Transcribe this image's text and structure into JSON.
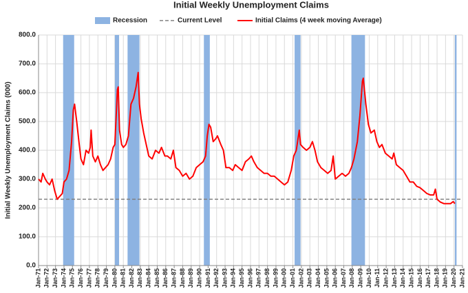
{
  "chart_data": {
    "type": "line",
    "title": "Initial Weekly Unemployment Claims",
    "y_label": "Initial Weekly Unemployment Claims (000)",
    "xlim": [
      1971,
      2021
    ],
    "xticks": [
      {
        "value": 1971,
        "label": "Jan-71"
      },
      {
        "value": 1972,
        "label": "Jan-72"
      },
      {
        "value": 1973,
        "label": "Jan-73"
      },
      {
        "value": 1974,
        "label": "Jan-74"
      },
      {
        "value": 1975,
        "label": "Jan-75"
      },
      {
        "value": 1976,
        "label": "Jan-76"
      },
      {
        "value": 1977,
        "label": "Jan-77"
      },
      {
        "value": 1978,
        "label": "Jan-78"
      },
      {
        "value": 1979,
        "label": "Jan-79"
      },
      {
        "value": 1980,
        "label": "Jan-80"
      },
      {
        "value": 1981,
        "label": "Jan-81"
      },
      {
        "value": 1982,
        "label": "Jan-82"
      },
      {
        "value": 1983,
        "label": "Jan-83"
      },
      {
        "value": 1984,
        "label": "Jan-84"
      },
      {
        "value": 1985,
        "label": "Jan-85"
      },
      {
        "value": 1986,
        "label": "Jan-86"
      },
      {
        "value": 1987,
        "label": "Jan-87"
      },
      {
        "value": 1988,
        "label": "Jan-88"
      },
      {
        "value": 1989,
        "label": "Jan-89"
      },
      {
        "value": 1990,
        "label": "Jan-90"
      },
      {
        "value": 1991,
        "label": "Jan-91"
      },
      {
        "value": 1992,
        "label": "Jan-92"
      },
      {
        "value": 1993,
        "label": "Jan-93"
      },
      {
        "value": 1994,
        "label": "Jan-94"
      },
      {
        "value": 1995,
        "label": "Jan-95"
      },
      {
        "value": 1996,
        "label": "Jan-96"
      },
      {
        "value": 1997,
        "label": "Jan-97"
      },
      {
        "value": 1998,
        "label": "Jan-98"
      },
      {
        "value": 1999,
        "label": "Jan-99"
      },
      {
        "value": 2000,
        "label": "Jan-00"
      },
      {
        "value": 2001,
        "label": "Jan-01"
      },
      {
        "value": 2002,
        "label": "Jan-02"
      },
      {
        "value": 2003,
        "label": "Jan-03"
      },
      {
        "value": 2004,
        "label": "Jan-04"
      },
      {
        "value": 2005,
        "label": "Jan-05"
      },
      {
        "value": 2006,
        "label": "Jan-06"
      },
      {
        "value": 2007,
        "label": "Jan-07"
      },
      {
        "value": 2008,
        "label": "Jan-08"
      },
      {
        "value": 2009,
        "label": "Jan-09"
      },
      {
        "value": 2010,
        "label": "Jan-10"
      },
      {
        "value": 2011,
        "label": "Jan-11"
      },
      {
        "value": 2012,
        "label": "Jan-12"
      },
      {
        "value": 2013,
        "label": "Jan-13"
      },
      {
        "value": 2014,
        "label": "Jan-14"
      },
      {
        "value": 2015,
        "label": "Jan-15"
      },
      {
        "value": 2016,
        "label": "Jan-16"
      },
      {
        "value": 2017,
        "label": "Jan-17"
      },
      {
        "value": 2018,
        "label": "Jan-18"
      },
      {
        "value": 2019,
        "label": "Jan-19"
      },
      {
        "value": 2020,
        "label": "Jan-20"
      },
      {
        "value": 2021,
        "label": "Jan-21"
      }
    ],
    "ylim": [
      0,
      800
    ],
    "yticks": [
      {
        "value": 0,
        "label": "0.0"
      },
      {
        "value": 100,
        "label": "100.0"
      },
      {
        "value": 200,
        "label": "200.0"
      },
      {
        "value": 300,
        "label": "300.0"
      },
      {
        "value": 400,
        "label": "400.0"
      },
      {
        "value": 500,
        "label": "500.0"
      },
      {
        "value": 600,
        "label": "600.0"
      },
      {
        "value": 700,
        "label": "700.0"
      },
      {
        "value": 800,
        "label": "800.0"
      }
    ],
    "grid": true,
    "recessions": {
      "name": "Recession",
      "color": "#8db3e2",
      "starts": [
        1973.9,
        1980.0,
        1981.5,
        1990.5,
        2001.2,
        2007.9,
        2020.1
      ],
      "ends": [
        1975.2,
        1980.5,
        1982.9,
        1991.2,
        2001.9,
        2009.5,
        2020.3
      ]
    },
    "current_level": {
      "name": "Current Level",
      "color": "#808080",
      "value": 230
    },
    "series": [
      {
        "name": "Initial Claims (4 week moving Average)",
        "color": "#ff0000",
        "x": [
          1971.0,
          1971.3,
          1971.5,
          1971.8,
          1972.0,
          1972.3,
          1972.6,
          1972.9,
          1973.2,
          1973.5,
          1973.8,
          1974.0,
          1974.3,
          1974.6,
          1974.9,
          1975.1,
          1975.25,
          1975.5,
          1975.8,
          1976.0,
          1976.3,
          1976.6,
          1976.9,
          1977.1,
          1977.2,
          1977.4,
          1977.7,
          1978.0,
          1978.3,
          1978.6,
          1978.9,
          1979.2,
          1979.5,
          1979.8,
          1980.0,
          1980.3,
          1980.4,
          1980.55,
          1980.8,
          1981.0,
          1981.3,
          1981.6,
          1981.9,
          1982.2,
          1982.5,
          1982.75,
          1982.9,
          1983.1,
          1983.4,
          1983.7,
          1984.0,
          1984.4,
          1984.8,
          1985.2,
          1985.5,
          1985.9,
          1986.2,
          1986.6,
          1986.9,
          1987.2,
          1987.6,
          1988.0,
          1988.4,
          1988.8,
          1989.2,
          1989.6,
          1990.0,
          1990.4,
          1990.7,
          1990.9,
          1991.1,
          1991.3,
          1991.6,
          1991.9,
          1992.1,
          1992.5,
          1992.8,
          1993.1,
          1993.5,
          1993.9,
          1994.2,
          1994.6,
          1995.0,
          1995.4,
          1995.8,
          1996.1,
          1996.4,
          1996.8,
          1997.2,
          1997.6,
          1998.0,
          1998.4,
          1998.8,
          1999.2,
          1999.6,
          2000.0,
          2000.4,
          2000.8,
          2001.1,
          2001.4,
          2001.75,
          2001.9,
          2002.2,
          2002.6,
          2003.0,
          2003.3,
          2003.6,
          2003.9,
          2004.3,
          2004.7,
          2005.1,
          2005.5,
          2005.75,
          2006.0,
          2006.4,
          2006.8,
          2007.2,
          2007.6,
          2007.9,
          2008.2,
          2008.6,
          2008.9,
          2009.2,
          2009.3,
          2009.6,
          2009.9,
          2010.2,
          2010.6,
          2010.9,
          2011.2,
          2011.5,
          2011.9,
          2012.3,
          2012.7,
          2012.9,
          2013.2,
          2013.6,
          2014.0,
          2014.4,
          2014.8,
          2015.2,
          2015.6,
          2016.0,
          2016.4,
          2016.8,
          2017.2,
          2017.6,
          2017.8,
          2018.0,
          2018.4,
          2018.8,
          2019.2,
          2019.6,
          2019.9,
          2020.1
        ],
        "values": [
          300,
          290,
          320,
          300,
          290,
          280,
          300,
          260,
          230,
          240,
          250,
          290,
          300,
          330,
          430,
          540,
          560,
          500,
          420,
          370,
          350,
          400,
          390,
          410,
          470,
          380,
          360,
          380,
          350,
          330,
          340,
          350,
          370,
          410,
          420,
          610,
          620,
          470,
          420,
          410,
          420,
          450,
          560,
          580,
          620,
          670,
          560,
          510,
          460,
          420,
          380,
          370,
          400,
          390,
          410,
          380,
          380,
          370,
          400,
          340,
          330,
          310,
          320,
          300,
          310,
          340,
          350,
          360,
          380,
          450,
          490,
          480,
          430,
          440,
          450,
          420,
          400,
          340,
          340,
          330,
          350,
          340,
          330,
          360,
          370,
          380,
          360,
          340,
          330,
          320,
          320,
          310,
          310,
          300,
          290,
          280,
          290,
          330,
          380,
          400,
          470,
          420,
          410,
          400,
          410,
          430,
          400,
          360,
          340,
          330,
          320,
          330,
          380,
          300,
          310,
          320,
          310,
          320,
          340,
          370,
          430,
          520,
          640,
          650,
          560,
          490,
          460,
          470,
          430,
          410,
          420,
          390,
          380,
          370,
          390,
          350,
          340,
          330,
          310,
          290,
          290,
          275,
          270,
          260,
          250,
          245,
          245,
          265,
          230,
          220,
          215,
          215,
          215,
          222,
          215
        ]
      }
    ]
  }
}
